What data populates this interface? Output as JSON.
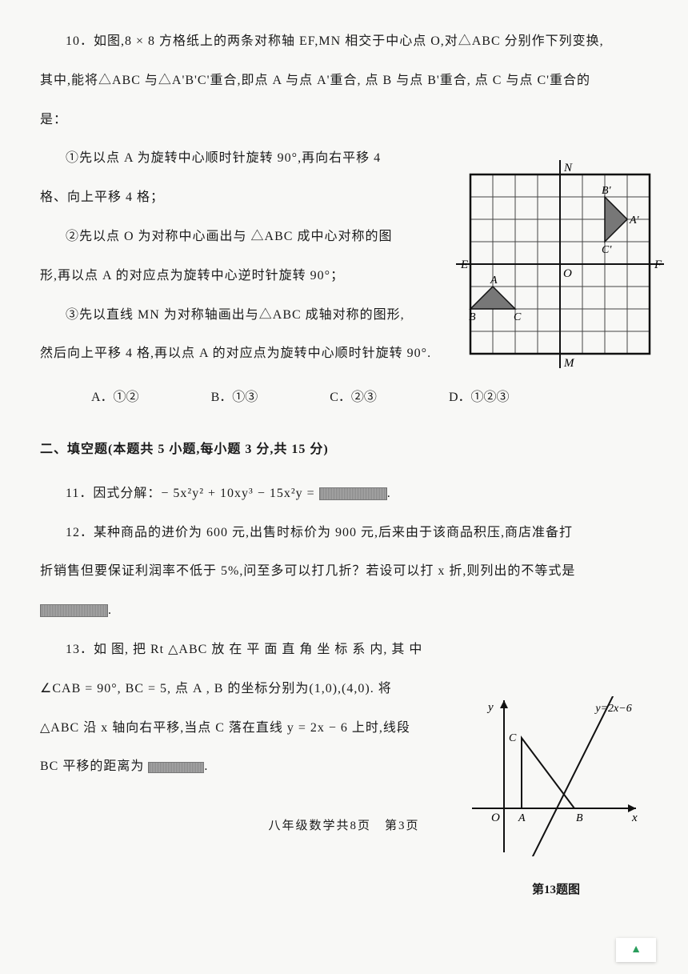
{
  "q10": {
    "line1": "10．如图,8 × 8 方格纸上的两条对称轴 EF,MN 相交于中心点 O,对△ABC 分别作下列变换,",
    "line2": "其中,能将△ABC 与△A'B'C'重合,即点 A 与点 A'重合, 点 B 与点 B'重合, 点 C 与点 C'重合的",
    "line3": "是：",
    "t1a": "①先以点 A 为旋转中心顺时针旋转 90°,再向右平移 4",
    "t1b": "格、向上平移 4 格；",
    "t2a": "②先以点 O 为对称中心画出与 △ABC 成中心对称的图",
    "t2b": "形,再以点 A 的对应点为旋转中心逆时针旋转 90°；",
    "t3a": "③先以直线 MN 为对称轴画出与△ABC 成轴对称的图形,",
    "t3b": "然后向上平移 4 格,再以点 A 的对应点为旋转中心顺时针旋转 90°.",
    "optA": "A．①②",
    "optB": "B．①③",
    "optC": "C．②③",
    "optD": "D．①②③"
  },
  "section2": "二、填空题(本题共 5 小题,每小题 3 分,共 15 分)",
  "q11": {
    "text": "11．因式分解：− 5x²y² + 10xy³ − 15x²y = ",
    "after": "."
  },
  "q12": {
    "line1": "12．某种商品的进价为 600 元,出售时标价为 900 元,后来由于该商品积压,商店准备打",
    "line2": "折销售但要保证利润率不低于 5%,问至多可以打几折？若设可以打 x 折,则列出的不等式是",
    "after": "."
  },
  "q13": {
    "line1": "13．如 图, 把 Rt △ABC 放 在 平 面 直 角 坐 标 系 内, 其 中",
    "line2": "∠CAB = 90°, BC = 5, 点 A , B 的坐标分别为(1,0),(4,0). 将",
    "line3": "△ABC 沿 x 轴向右平移,当点 C 落在直线 y = 2x − 6 上时,线段",
    "line4": "BC 平移的距离为",
    "after": ".",
    "caption": "第13题图"
  },
  "footer": "八年级数学共8页　第3页",
  "grid": {
    "size": 8,
    "cell": 28,
    "labels": {
      "E": "E",
      "F": "F",
      "M": "M",
      "N": "N",
      "O": "O",
      "A": "A",
      "B": "B",
      "C": "C",
      "Ap": "A'",
      "Bp": "B'",
      "Cp": "C'"
    },
    "axis_color": "#111",
    "grid_color": "#444",
    "triangle_fill": "#777"
  },
  "graph": {
    "line_label": "y=2x−6",
    "x_label": "x",
    "y_label": "y",
    "O": "O",
    "A": "A",
    "B": "B",
    "C": "C",
    "axis_color": "#111"
  },
  "backtop": "▲",
  "backtop_color": "#2a9d5c"
}
